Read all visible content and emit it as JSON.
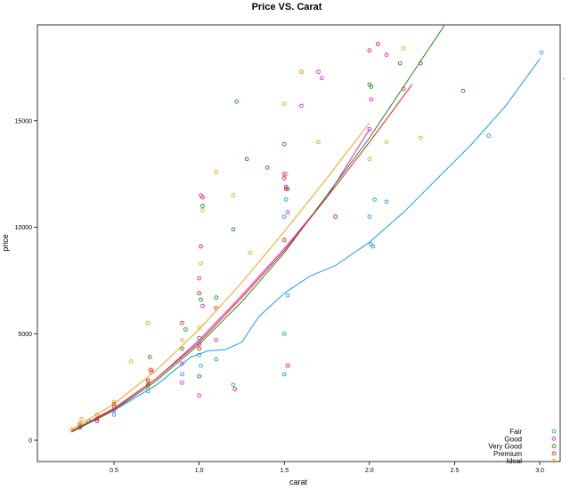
{
  "chart_data": {
    "type": "scatter",
    "title": "Price VS. Carat",
    "xlabel": "carat",
    "ylabel": "price",
    "xlim": [
      0.05,
      3.12
    ],
    "ylim": [
      -1000,
      19500
    ],
    "x_ticks": [
      {
        "value": 0.5,
        "label": "0.5"
      },
      {
        "value": 1.0,
        "label": "1.0"
      },
      {
        "value": 1.5,
        "label": "1.5"
      },
      {
        "value": 2.0,
        "label": "2.0"
      },
      {
        "value": 2.5,
        "label": "2.5"
      },
      {
        "value": 3.0,
        "label": "3.0"
      }
    ],
    "y_ticks": [
      {
        "value": 0,
        "label": "0"
      },
      {
        "value": 5000,
        "label": "5000"
      },
      {
        "value": 10000,
        "label": "10000"
      },
      {
        "value": 15000,
        "label": "15000"
      }
    ],
    "legend_position": "bottom-right",
    "series": [
      {
        "name": "Fair",
        "color": "#1f9be6",
        "points": [
          [
            0.5,
            1200
          ],
          [
            0.7,
            2300
          ],
          [
            0.9,
            3100
          ],
          [
            1.0,
            4000
          ],
          [
            1.01,
            3500
          ],
          [
            1.1,
            3800
          ],
          [
            1.2,
            2600
          ],
          [
            1.5,
            5000
          ],
          [
            1.5,
            3100
          ],
          [
            1.5,
            10500
          ],
          [
            1.51,
            11300
          ],
          [
            1.52,
            6800
          ],
          [
            2.0,
            10500
          ],
          [
            2.01,
            9200
          ],
          [
            2.03,
            11300
          ],
          [
            2.02,
            9100
          ],
          [
            2.1,
            11200
          ],
          [
            3.01,
            18200
          ],
          [
            2.7,
            14300
          ],
          [
            0.3,
            600
          ],
          [
            0.4,
            900
          ]
        ],
        "fit": [
          [
            0.25,
            420
          ],
          [
            0.5,
            1400
          ],
          [
            0.75,
            2600
          ],
          [
            0.95,
            3900
          ],
          [
            1.05,
            4200
          ],
          [
            1.15,
            4250
          ],
          [
            1.25,
            4600
          ],
          [
            1.35,
            5800
          ],
          [
            1.5,
            6900
          ],
          [
            1.65,
            7700
          ],
          [
            1.8,
            8200
          ],
          [
            2.0,
            9300
          ],
          [
            2.2,
            10700
          ],
          [
            2.4,
            12300
          ],
          [
            2.6,
            13900
          ],
          [
            2.8,
            15700
          ],
          [
            3.0,
            17900
          ]
        ]
      },
      {
        "name": "Good",
        "color": "#e020d8",
        "points": [
          [
            0.3,
            700
          ],
          [
            0.4,
            900
          ],
          [
            0.5,
            1400
          ],
          [
            0.7,
            2800
          ],
          [
            0.72,
            3300
          ],
          [
            0.9,
            3600
          ],
          [
            1.0,
            4500
          ],
          [
            1.0,
            7600
          ],
          [
            1.01,
            11500
          ],
          [
            1.02,
            6300
          ],
          [
            1.1,
            4700
          ],
          [
            1.5,
            12500
          ],
          [
            1.52,
            10700
          ],
          [
            1.6,
            15700
          ],
          [
            1.7,
            17300
          ],
          [
            1.72,
            17000
          ],
          [
            1.51,
            11900
          ],
          [
            2.0,
            14600
          ],
          [
            2.01,
            16000
          ],
          [
            2.1,
            18100
          ],
          [
            1.0,
            2100
          ],
          [
            0.9,
            2700
          ]
        ],
        "fit": [
          [
            0.25,
            420
          ],
          [
            0.5,
            1450
          ],
          [
            0.75,
            2900
          ],
          [
            1.0,
            4700
          ],
          [
            1.25,
            6800
          ],
          [
            1.5,
            9000
          ],
          [
            1.75,
            11400
          ],
          [
            2.0,
            14600
          ]
        ]
      },
      {
        "name": "Very Good",
        "color": "#1b8a1b",
        "points": [
          [
            0.3,
            650
          ],
          [
            0.35,
            900
          ],
          [
            0.5,
            1600
          ],
          [
            0.7,
            2600
          ],
          [
            0.71,
            3900
          ],
          [
            0.9,
            4300
          ],
          [
            0.92,
            5200
          ],
          [
            1.0,
            4800
          ],
          [
            1.01,
            6600
          ],
          [
            1.02,
            11000
          ],
          [
            1.1,
            6700
          ],
          [
            1.2,
            9900
          ],
          [
            1.22,
            15900
          ],
          [
            1.28,
            13200
          ],
          [
            1.4,
            12800
          ],
          [
            1.5,
            13900
          ],
          [
            1.52,
            11800
          ],
          [
            2.0,
            16700
          ],
          [
            2.01,
            16600
          ],
          [
            2.18,
            17700
          ],
          [
            2.55,
            16400
          ],
          [
            1.0,
            3000
          ]
        ],
        "fit": [
          [
            0.25,
            380
          ],
          [
            0.5,
            1400
          ],
          [
            0.75,
            2800
          ],
          [
            1.0,
            4500
          ],
          [
            1.25,
            6500
          ],
          [
            1.5,
            8800
          ],
          [
            1.75,
            11500
          ],
          [
            2.0,
            14200
          ],
          [
            2.25,
            17200
          ],
          [
            2.5,
            20200
          ],
          [
            2.6,
            21500
          ]
        ]
      },
      {
        "name": "Premium",
        "color": "#e8201c",
        "points": [
          [
            0.3,
            800
          ],
          [
            0.4,
            1000
          ],
          [
            0.5,
            1700
          ],
          [
            0.7,
            2800
          ],
          [
            0.72,
            3200
          ],
          [
            0.9,
            5500
          ],
          [
            1.0,
            6900
          ],
          [
            1.01,
            9100
          ],
          [
            1.02,
            11400
          ],
          [
            1.1,
            6200
          ],
          [
            1.21,
            2400
          ],
          [
            1.5,
            12300
          ],
          [
            1.51,
            11800
          ],
          [
            1.5,
            9400
          ],
          [
            1.52,
            3500
          ],
          [
            1.6,
            17300
          ],
          [
            1.8,
            10500
          ],
          [
            2.0,
            18300
          ],
          [
            2.05,
            18600
          ],
          [
            2.2,
            16500
          ],
          [
            2.3,
            17700
          ],
          [
            1.0,
            4300
          ]
        ],
        "fit": [
          [
            0.25,
            420
          ],
          [
            0.5,
            1500
          ],
          [
            0.75,
            2900
          ],
          [
            1.0,
            4600
          ],
          [
            1.25,
            6700
          ],
          [
            1.5,
            8900
          ],
          [
            1.75,
            11400
          ],
          [
            2.0,
            14000
          ],
          [
            2.25,
            16700
          ]
        ]
      },
      {
        "name": "Ideal",
        "color": "#f0a21a",
        "points": [
          [
            0.25,
            500
          ],
          [
            0.3,
            800
          ],
          [
            0.31,
            1000
          ],
          [
            0.4,
            1200
          ],
          [
            0.5,
            1800
          ],
          [
            0.6,
            3700
          ],
          [
            0.7,
            2500
          ],
          [
            0.71,
            3300
          ],
          [
            0.9,
            4700
          ],
          [
            1.0,
            5300
          ],
          [
            1.01,
            8300
          ],
          [
            1.02,
            10800
          ],
          [
            1.1,
            12600
          ],
          [
            1.2,
            11500
          ],
          [
            1.3,
            8800
          ],
          [
            1.5,
            15800
          ],
          [
            1.51,
            12500
          ],
          [
            1.6,
            17300
          ],
          [
            1.7,
            14000
          ],
          [
            2.0,
            13200
          ],
          [
            2.1,
            14000
          ],
          [
            2.2,
            18400
          ],
          [
            2.3,
            14200
          ],
          [
            0.7,
            5500
          ]
        ],
        "fit": [
          [
            0.25,
            500
          ],
          [
            0.5,
            1700
          ],
          [
            0.75,
            3300
          ],
          [
            1.0,
            5200
          ],
          [
            1.25,
            7400
          ],
          [
            1.5,
            9800
          ],
          [
            1.75,
            12300
          ],
          [
            2.0,
            14900
          ]
        ]
      }
    ]
  }
}
